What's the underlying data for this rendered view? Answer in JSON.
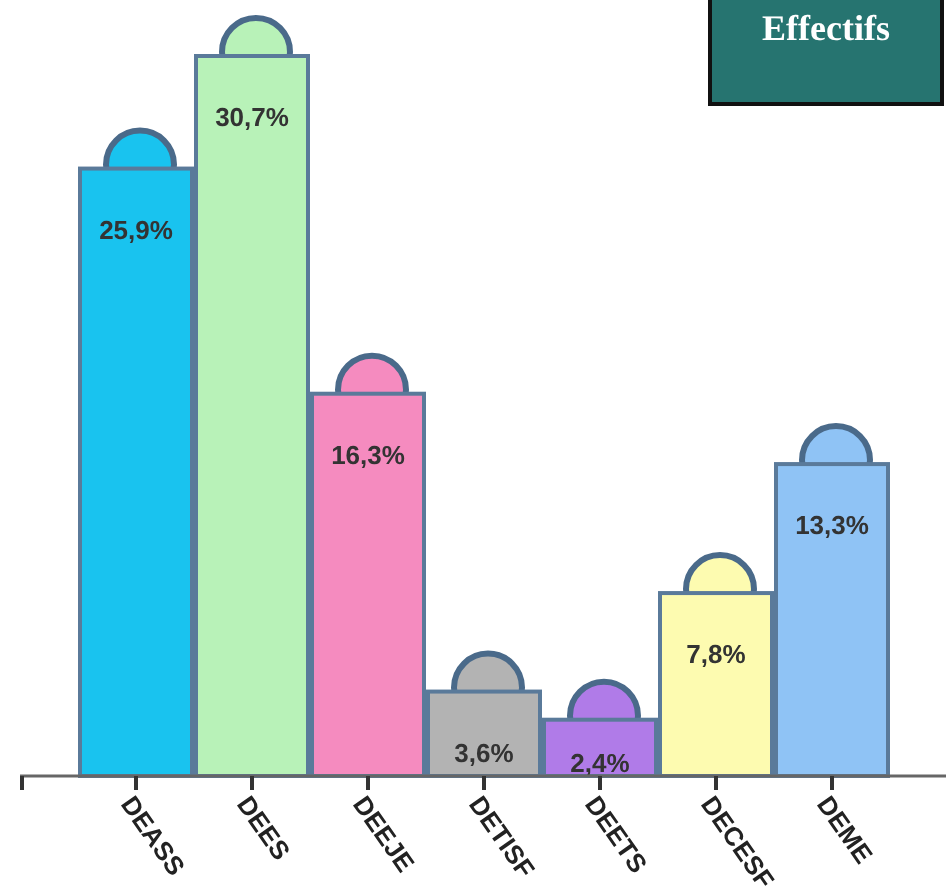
{
  "chart_data": {
    "type": "bar",
    "title": "Effectifs",
    "categories": [
      "DEASS",
      "DEES",
      "DEEJE",
      "DETISF",
      "DEETS",
      "DECESF",
      "DEME"
    ],
    "values": [
      25.9,
      30.7,
      16.3,
      3.6,
      2.4,
      7.8,
      13.3
    ],
    "value_labels": [
      "25,9%",
      "30,7%",
      "16,3%",
      "3,6%",
      "2,4%",
      "7,8%",
      "13,3%"
    ],
    "colors": [
      "#19c3ef",
      "#b8f2b8",
      "#f58bbf",
      "#b3b3b3",
      "#b07be8",
      "#fdfbb0",
      "#8fc3f5"
    ]
  }
}
